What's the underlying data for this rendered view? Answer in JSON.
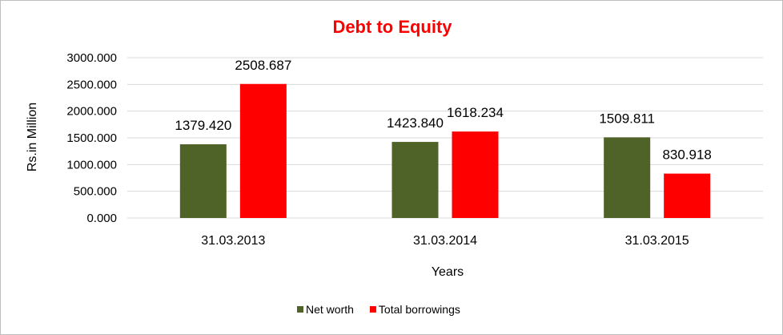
{
  "chart_data": {
    "type": "bar",
    "title": "Debt to Equity",
    "xlabel": "Years",
    "ylabel": "Rs.in Million",
    "categories": [
      "31.03.2013",
      "31.03.2014",
      "31.03.2015"
    ],
    "series": [
      {
        "name": "Net worth",
        "values": [
          1379.42,
          1423.84,
          1509.811
        ],
        "labels": [
          "1379.420",
          "1423.840",
          "1509.811"
        ],
        "color": "#4f6228"
      },
      {
        "name": "Total borrowings",
        "values": [
          2508.687,
          1618.234,
          830.918
        ],
        "labels": [
          "2508.687",
          "1618.234",
          "830.918"
        ],
        "color": "#ff0000"
      }
    ],
    "ylim": [
      0,
      3000
    ],
    "yticks": [
      0,
      500,
      1000,
      1500,
      2000,
      2500,
      3000
    ],
    "ytick_labels": [
      "0.000",
      "500.000",
      "1000.000",
      "1500.000",
      "2000.000",
      "2500.000",
      "3000.000"
    ],
    "grid": true,
    "legend_position": "bottom",
    "colors": {
      "title": "#ff0000",
      "grid": "#d9d9d9"
    }
  }
}
